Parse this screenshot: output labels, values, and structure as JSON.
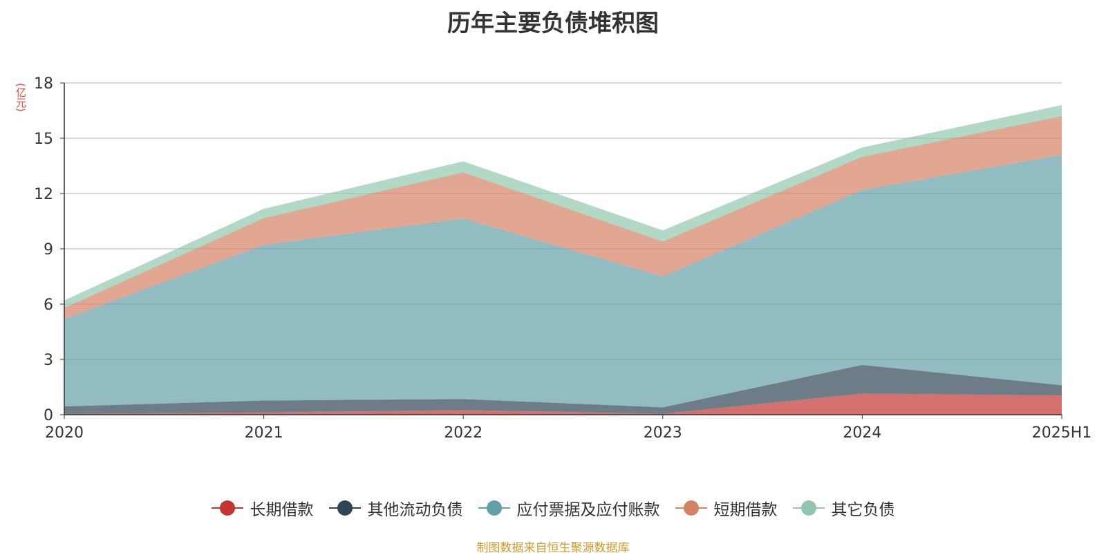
{
  "title": "历年主要负债堆积图",
  "unit_label": "(亿元)",
  "source_note": "制图数据来自恒生聚源数据库",
  "chart_data": {
    "type": "area",
    "stacked": true,
    "title": "历年主要负债堆积图",
    "ylabel": "(亿元)",
    "ylim": [
      0,
      18
    ],
    "yticks": [
      0,
      3,
      6,
      9,
      12,
      15,
      18
    ],
    "categories": [
      "2020",
      "2021",
      "2022",
      "2023",
      "2024",
      "2025H1"
    ],
    "grid": true,
    "legend_position": "bottom",
    "series": [
      {
        "name": "长期借款",
        "color": "#c23531",
        "values": [
          0.05,
          0.12,
          0.25,
          0.05,
          1.15,
          1.05
        ]
      },
      {
        "name": "其他流动负债",
        "color": "#2f4554",
        "values": [
          0.4,
          0.65,
          0.6,
          0.35,
          1.55,
          0.55
        ]
      },
      {
        "name": "应付票据及应付账款",
        "color": "#61a0a8",
        "values": [
          4.75,
          8.45,
          9.8,
          7.1,
          9.5,
          12.5
        ]
      },
      {
        "name": "短期借款",
        "color": "#d48265",
        "values": [
          0.6,
          1.45,
          2.5,
          1.9,
          1.8,
          2.1
        ]
      },
      {
        "name": "其它负债",
        "color": "#91c7ae",
        "values": [
          0.4,
          0.5,
          0.6,
          0.6,
          0.5,
          0.6
        ]
      }
    ]
  }
}
